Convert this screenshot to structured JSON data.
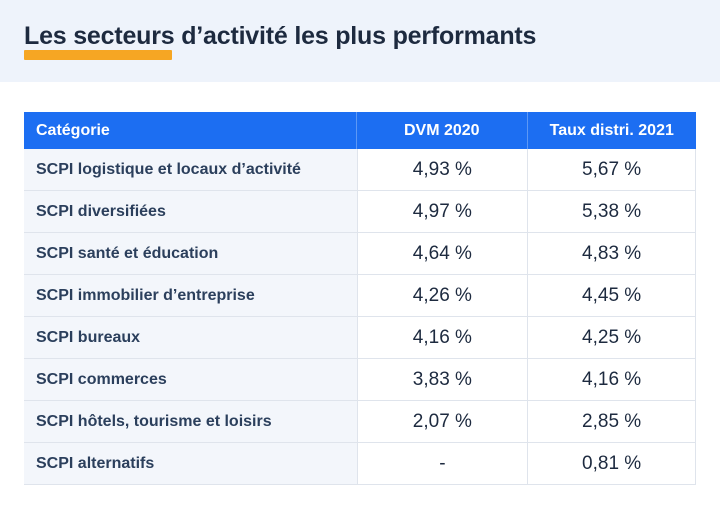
{
  "title": "Les secteurs d’activité les plus performants",
  "table": {
    "headers": [
      "Catégorie",
      "DVM 2020",
      "Taux distri. 2021"
    ],
    "rows": [
      [
        "SCPI logistique et locaux d’activité",
        "4,93 %",
        "5,67 %"
      ],
      [
        "SCPI diversifiées",
        "4,97 %",
        "5,38 %"
      ],
      [
        "SCPI santé et éducation",
        "4,64 %",
        "4,83 %"
      ],
      [
        "SCPI immobilier d’entreprise",
        "4,26 %",
        "4,45 %"
      ],
      [
        "SCPI bureaux",
        "4,16 %",
        "4,25 %"
      ],
      [
        "SCPI commerces",
        "3,83 %",
        "4,16 %"
      ],
      [
        "SCPI hôtels, tourisme et loisirs",
        "2,07 %",
        "2,85 %"
      ],
      [
        "SCPI alternatifs",
        "-",
        "0,81 %"
      ]
    ]
  },
  "colors": {
    "header_bg": "#eef3fb",
    "accent_underline": "#f6a623",
    "table_header": "#1c6ef2"
  }
}
